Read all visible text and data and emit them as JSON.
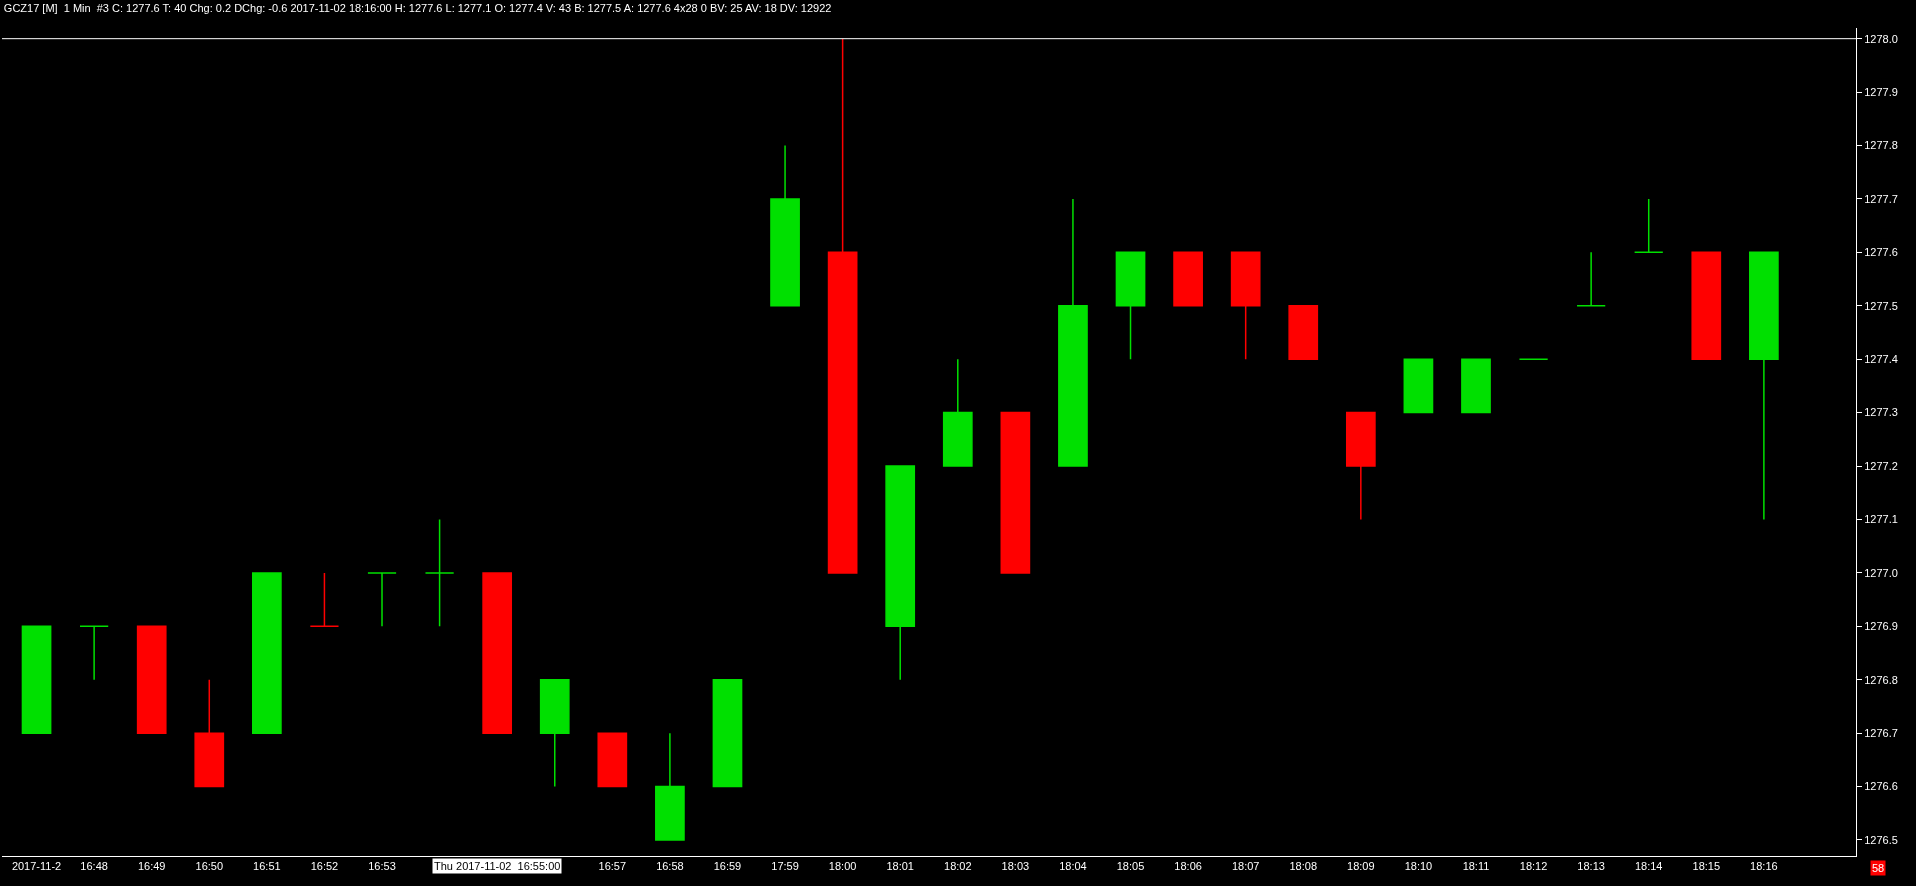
{
  "chart_data": {
    "type": "candlestick",
    "title": "GCZ17 [M]  1 Min  #3 C: 1277.6 T: 40 Chg: 0.2 DChg: -0.6 2017-11-02 18:16:00 H: 1277.6 L: 1277.1 O: 1277.4 V: 43 B: 1277.5 A: 1277.6 4x28 0 BV: 25 AV: 18 DV: 12922",
    "categories": [
      "2017-11-2",
      "16:48",
      "16:49",
      "16:50",
      "16:51",
      "16:52",
      "16:53",
      null,
      null,
      null,
      "16:57",
      "16:58",
      "16:59",
      "17:59",
      "18:00",
      "18:01",
      "18:02",
      "18:03",
      "18:04",
      "18:05",
      "18:06",
      "18:07",
      "18:08",
      "18:09",
      "18:10",
      "18:11",
      "18:12",
      "18:13",
      "18:14",
      "18:15",
      "18:16"
    ],
    "ohlc": [
      [
        1276.7,
        1276.9,
        1276.7,
        1276.9
      ],
      [
        1276.9,
        1276.9,
        1276.8,
        1276.9
      ],
      [
        1276.9,
        1276.9,
        1276.7,
        1276.7
      ],
      [
        1276.7,
        1276.8,
        1276.6,
        1276.6
      ],
      [
        1276.7,
        1277.0,
        1276.7,
        1277.0
      ],
      [
        1276.9,
        1277.0,
        1276.9,
        1276.9
      ],
      [
        1277.0,
        1277.0,
        1276.9,
        1277.0
      ],
      [
        1277.0,
        1277.1,
        1276.9,
        1277.0
      ],
      [
        1277.0,
        1277.0,
        1276.7,
        1276.7
      ],
      [
        1276.7,
        1276.8,
        1276.6,
        1276.8
      ],
      [
        1276.7,
        1276.7,
        1276.6,
        1276.6
      ],
      [
        1276.5,
        1276.7,
        1276.5,
        1276.6
      ],
      [
        1276.6,
        1276.8,
        1276.6,
        1276.8
      ],
      [
        1277.5,
        1277.8,
        1277.5,
        1277.7
      ],
      [
        1277.6,
        1278.0,
        1277.0,
        1277.0
      ],
      [
        1276.9,
        1277.2,
        1276.8,
        1277.2
      ],
      [
        1277.2,
        1277.4,
        1277.2,
        1277.3
      ],
      [
        1277.3,
        1277.3,
        1277.0,
        1277.0
      ],
      [
        1277.2,
        1277.7,
        1277.2,
        1277.5
      ],
      [
        1277.5,
        1277.6,
        1277.4,
        1277.6
      ],
      [
        1277.6,
        1277.6,
        1277.5,
        1277.5
      ],
      [
        1277.6,
        1277.6,
        1277.4,
        1277.5
      ],
      [
        1277.5,
        1277.5,
        1277.4,
        1277.4
      ],
      [
        1277.3,
        1277.3,
        1277.1,
        1277.2
      ],
      [
        1277.3,
        1277.4,
        1277.3,
        1277.4
      ],
      [
        1277.3,
        1277.4,
        1277.3,
        1277.4
      ],
      [
        1277.4,
        1277.4,
        1277.4,
        1277.4
      ],
      [
        1277.5,
        1277.6,
        1277.5,
        1277.5
      ],
      [
        1277.6,
        1277.7,
        1277.6,
        1277.6
      ],
      [
        1277.6,
        1277.6,
        1277.4,
        1277.4
      ],
      [
        1277.4,
        1277.6,
        1277.1,
        1277.6
      ]
    ],
    "colors": [
      "#00e000",
      "#00e000",
      "#ff0000",
      "#ff0000",
      "#00e000",
      "#ff0000",
      "#00e000",
      "#00e000",
      "#ff0000",
      "#00e000",
      "#ff0000",
      "#00e000",
      "#00e000",
      "#00e000",
      "#ff0000",
      "#00e000",
      "#00e000",
      "#ff0000",
      "#00e000",
      "#00e000",
      "#ff0000",
      "#ff0000",
      "#ff0000",
      "#ff0000",
      "#00e000",
      "#00e000",
      "#00e000",
      "#00e000",
      "#00e000",
      "#ff0000",
      "#00e000"
    ],
    "ylim": [
      1276.47,
      1278.02
    ],
    "yticks": [
      1276.5,
      1276.6,
      1276.7,
      1276.8,
      1276.9,
      {
        "value": 1277.0,
        "label": "1277.0"
      },
      1277.1,
      1277.2,
      1277.3,
      1277.4,
      1277.5,
      1277.6,
      1277.7,
      1277.8,
      1277.9,
      {
        "value": 1278.0,
        "label": "1278.0"
      }
    ],
    "ref_lines": [
      {
        "axis": "y",
        "value": 1278.0,
        "color": "#ffffff"
      }
    ],
    "annotations": [
      "Thu 2017-11-02  16:55:00",
      "58"
    ],
    "grid": false
  }
}
